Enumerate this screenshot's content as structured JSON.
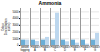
{
  "chart_data": {
    "type": "bar",
    "title": "Ammonia",
    "ylabel": "Odour\nConcentration\n(ou/m³)",
    "categories": [
      "before\nfogging",
      "Product\nA",
      "Product\nB",
      "Product\nC",
      "Product\nD",
      "Product\nE",
      "Product\nF",
      "Product\nG"
    ],
    "series": [
      {
        "color": "#6baed6",
        "values": [
          800,
          800,
          800,
          800,
          800,
          800,
          800,
          800
        ]
      },
      {
        "color": "#bdd7ee",
        "values": [
          800,
          600,
          1200,
          4800,
          550,
          350,
          200,
          1800
        ]
      }
    ],
    "ylim": [
      0,
      5500
    ],
    "yticks": [
      0,
      1000,
      2000,
      3000,
      4000,
      5000
    ],
    "grid": true
  }
}
